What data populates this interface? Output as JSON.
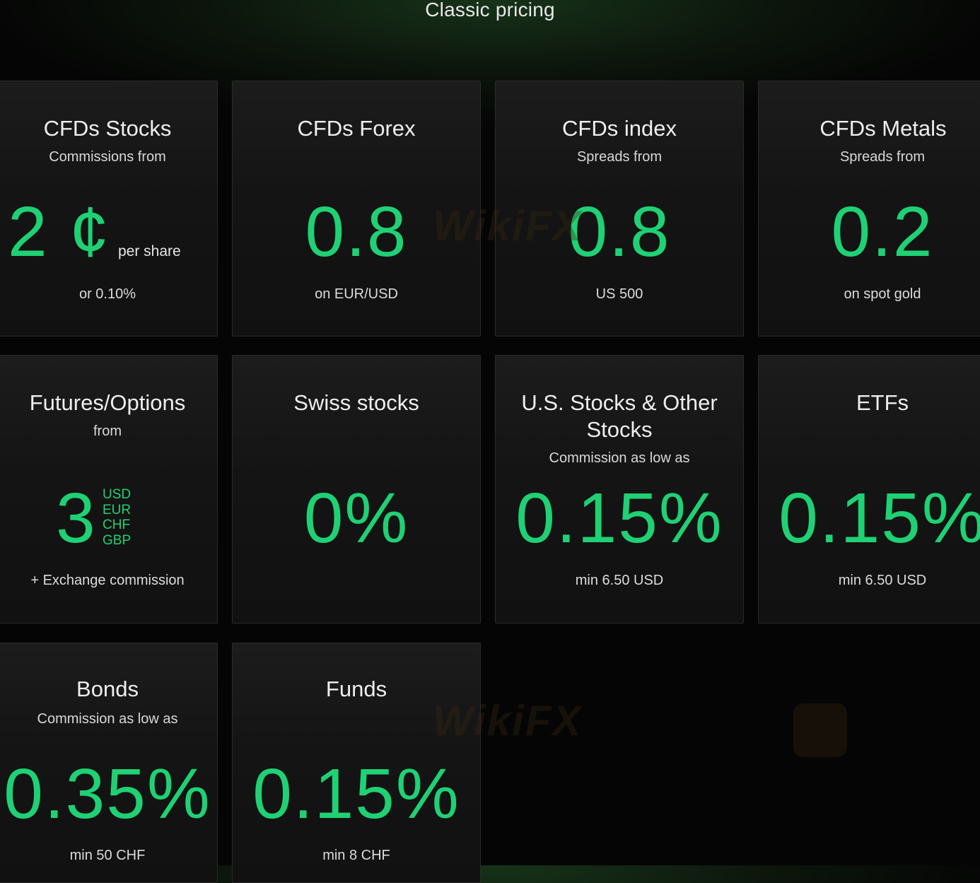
{
  "page": {
    "title": "Classic pricing"
  },
  "watermark": {
    "text": "WikiFX"
  },
  "colors": {
    "accent": "#1fd174",
    "background": "#050505",
    "card": "#161616"
  },
  "cards": [
    {
      "title": "CFDs Stocks",
      "subtitle": "Commissions from",
      "value": "2 ¢",
      "value_suffix": "per share",
      "footer": "or 0.10%"
    },
    {
      "title": "CFDs Forex",
      "subtitle": "",
      "value": "0.8",
      "footer": "on EUR/USD"
    },
    {
      "title": "CFDs index",
      "subtitle": "Spreads from",
      "value": "0.8",
      "footer": "US 500"
    },
    {
      "title": "CFDs Metals",
      "subtitle": "Spreads from",
      "value": "0.2",
      "footer": "on spot gold"
    },
    {
      "title": "Futures/Options",
      "subtitle": "from",
      "value": "3",
      "currencies": [
        "USD",
        "EUR",
        "CHF",
        "GBP"
      ],
      "footer": "+ Exchange commission"
    },
    {
      "title": "Swiss stocks",
      "subtitle": "",
      "value": "0%",
      "footer": ""
    },
    {
      "title": "U.S. Stocks & Other Stocks",
      "subtitle": "Commission as low as",
      "value": "0.15%",
      "footer": "min 6.50 USD"
    },
    {
      "title": "ETFs",
      "subtitle": "",
      "value": "0.15%",
      "footer": "min 6.50 USD"
    },
    {
      "title": "Bonds",
      "subtitle": "Commission as low as",
      "value": "0.35%",
      "footer": "min 50 CHF"
    },
    {
      "title": "Funds",
      "subtitle": "",
      "value": "0.15%",
      "footer": "min 8 CHF"
    }
  ]
}
